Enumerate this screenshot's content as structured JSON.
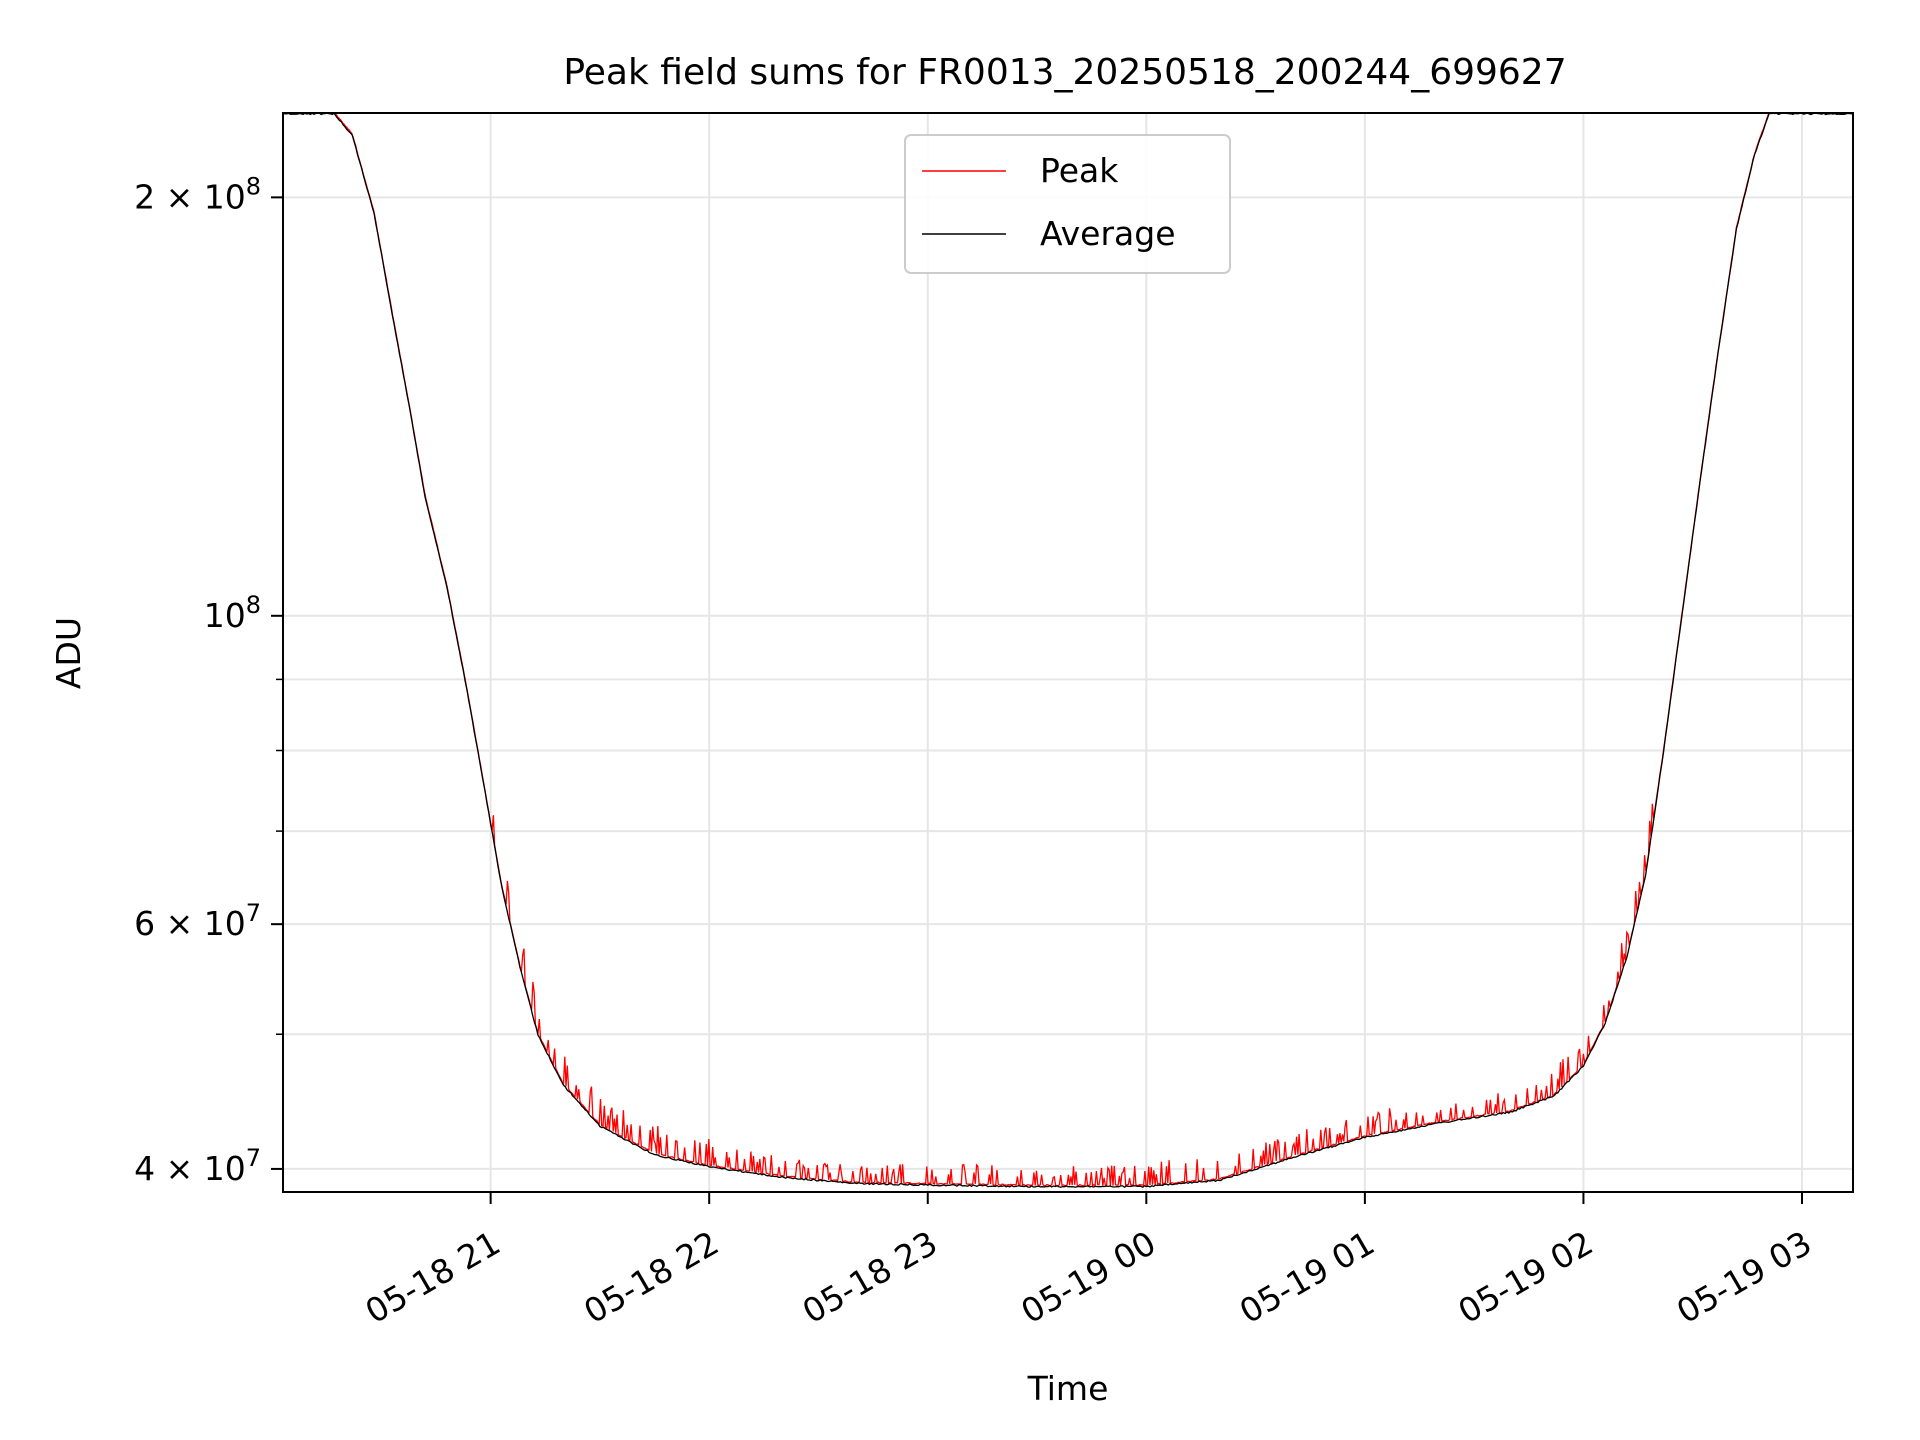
{
  "chart_data": {
    "type": "line",
    "title": "Peak field sums for FR0013_20250518_200244_699627",
    "xlabel": "Time",
    "ylabel": "ADU",
    "y_scale": "log",
    "xlim": [
      "2025-05-18 20:03",
      "2025-05-19 03:14"
    ],
    "ylim": [
      38500000,
      230000000
    ],
    "grid": true,
    "legend_position": "top-center",
    "x_ticks": [
      {
        "t": "2025-05-18 21:00",
        "label": "05-18 21"
      },
      {
        "t": "2025-05-18 22:00",
        "label": "05-18 22"
      },
      {
        "t": "2025-05-18 23:00",
        "label": "05-18 23"
      },
      {
        "t": "2025-05-19 00:00",
        "label": "05-19 00"
      },
      {
        "t": "2025-05-19 01:00",
        "label": "05-19 01"
      },
      {
        "t": "2025-05-19 02:00",
        "label": "05-19 02"
      },
      {
        "t": "2025-05-19 03:00",
        "label": "05-19 03"
      }
    ],
    "y_ticks": [
      {
        "value": 40000000,
        "label": "4 × 10",
        "exp": "7"
      },
      {
        "value": 60000000,
        "label": "6 × 10",
        "exp": "7"
      },
      {
        "value": 100000000,
        "label": "10",
        "exp": "8"
      },
      {
        "value": 200000000,
        "label": "2 × 10",
        "exp": "8"
      }
    ],
    "y_minor_ticks": [
      50000000,
      70000000,
      80000000,
      90000000
    ],
    "series": [
      {
        "name": "Average",
        "color": "#000000",
        "points": [
          [
            "2025-05-18 20:03",
            230000000
          ],
          [
            "2025-05-18 20:17",
            230000000
          ],
          [
            "2025-05-18 20:22",
            222000000
          ],
          [
            "2025-05-18 20:28",
            195000000
          ],
          [
            "2025-05-18 20:33",
            165000000
          ],
          [
            "2025-05-18 20:38",
            140000000
          ],
          [
            "2025-05-18 20:42",
            122000000
          ],
          [
            "2025-05-18 20:48",
            105000000
          ],
          [
            "2025-05-18 20:53",
            90000000
          ],
          [
            "2025-05-18 20:58",
            76000000
          ],
          [
            "2025-05-18 21:03",
            64000000
          ],
          [
            "2025-05-18 21:08",
            56000000
          ],
          [
            "2025-05-18 21:13",
            50000000
          ],
          [
            "2025-05-18 21:20",
            46000000
          ],
          [
            "2025-05-18 21:30",
            43000000
          ],
          [
            "2025-05-18 21:45",
            41000000
          ],
          [
            "2025-05-18 22:00",
            40200000
          ],
          [
            "2025-05-18 22:20",
            39500000
          ],
          [
            "2025-05-18 22:40",
            39100000
          ],
          [
            "2025-05-18 23:00",
            39000000
          ],
          [
            "2025-05-18 23:30",
            38900000
          ],
          [
            "2025-05-19 00:00",
            38900000
          ],
          [
            "2025-05-19 00:20",
            39300000
          ],
          [
            "2025-05-19 00:40",
            40800000
          ],
          [
            "2025-05-19 01:00",
            42200000
          ],
          [
            "2025-05-19 01:20",
            43200000
          ],
          [
            "2025-05-19 01:40",
            44000000
          ],
          [
            "2025-05-19 01:52",
            45200000
          ],
          [
            "2025-05-19 02:00",
            47500000
          ],
          [
            "2025-05-19 02:06",
            51000000
          ],
          [
            "2025-05-19 02:12",
            57000000
          ],
          [
            "2025-05-19 02:17",
            65000000
          ],
          [
            "2025-05-19 02:22",
            80000000
          ],
          [
            "2025-05-19 02:27",
            100000000
          ],
          [
            "2025-05-19 02:32",
            125000000
          ],
          [
            "2025-05-19 02:37",
            155000000
          ],
          [
            "2025-05-19 02:42",
            190000000
          ],
          [
            "2025-05-19 02:47",
            215000000
          ],
          [
            "2025-05-19 02:51",
            230000000
          ],
          [
            "2025-05-19 03:14",
            230000000
          ]
        ]
      },
      {
        "name": "Peak",
        "color": "#ff0000",
        "spike_ranges": [
          {
            "from": "2025-05-18 21:00",
            "to": "2025-05-18 21:20",
            "max_above_average": 0.06
          },
          {
            "from": "2025-05-18 21:20",
            "to": "2025-05-18 22:00",
            "max_above_average": 0.05
          },
          {
            "from": "2025-05-18 22:00",
            "to": "2025-05-19 00:00",
            "max_above_average": 0.035
          },
          {
            "from": "2025-05-19 00:00",
            "to": "2025-05-19 01:50",
            "max_above_average": 0.04
          },
          {
            "from": "2025-05-19 01:50",
            "to": "2025-05-19 02:20",
            "max_above_average": 0.05
          }
        ]
      }
    ]
  }
}
